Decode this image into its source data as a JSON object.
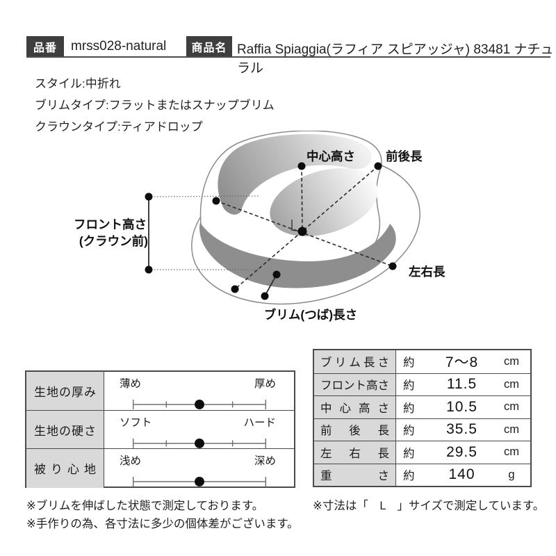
{
  "header": {
    "part_no_label": "品番",
    "part_no_value": "mrss028-natural",
    "product_name_label": "商品名",
    "product_name_value": "Raffia Spiaggia(ラフィア スピアッジャ) 83481 ナチュラル"
  },
  "specs": [
    "スタイル:中折れ",
    "ブリムタイプ:フラットまたはスナップブリム",
    "クラウンタイプ:ティアドロップ"
  ],
  "diagram": {
    "labels": {
      "center_height": "中心高さ",
      "front_back_length": "前後長",
      "front_height_line1": "フロント高さ",
      "front_height_line2": "(クラウン前)",
      "left_right_length": "左右長",
      "brim_length": "ブリム(つば)長さ"
    }
  },
  "sliders": {
    "rows": [
      {
        "label": "生地の厚み",
        "left": "薄め",
        "right": "厚め",
        "position": 0.5
      },
      {
        "label": "生地の硬さ",
        "left": "ソフト",
        "right": "ハード",
        "position": 0.5
      },
      {
        "label": "被り心地",
        "left": "浅め",
        "right": "深め",
        "position": 0.5
      }
    ]
  },
  "measurements": {
    "rows": [
      {
        "label": "ブリム長さ",
        "approx": "約",
        "value": "7〜8",
        "unit": "cm"
      },
      {
        "label": "フロント高さ",
        "approx": "約",
        "value": "11.5",
        "unit": "cm"
      },
      {
        "label": "中心高さ",
        "approx": "約",
        "value": "10.5",
        "unit": "cm"
      },
      {
        "label": "前後長",
        "approx": "約",
        "value": "35.5",
        "unit": "cm"
      },
      {
        "label": "左右長",
        "approx": "約",
        "value": "29.5",
        "unit": "cm"
      },
      {
        "label": "重さ",
        "approx": "約",
        "value": "140",
        "unit": "g"
      }
    ]
  },
  "notes": {
    "left": [
      "※ブリムを伸ばした状態で測定しております。",
      "※手作りの為、各寸法に多少の個体差がございます。"
    ],
    "right": "※寸法は「　L　」サイズで測定しています。"
  },
  "colors": {
    "header_box": "#3e3e3e",
    "table_border": "#4a4a4a",
    "label_cell_bg": "#d9d9d9",
    "hat_band_gray": "#8e8e8e",
    "measure_line": "#2a2a2a"
  }
}
